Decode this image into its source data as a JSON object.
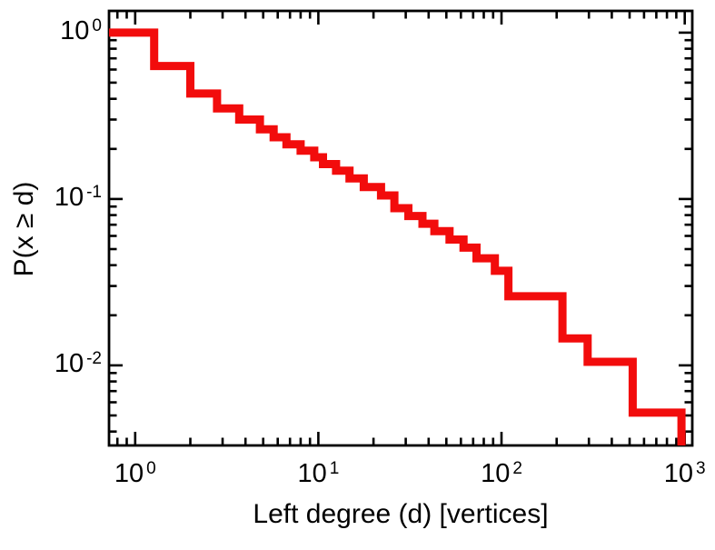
{
  "chart_data": {
    "type": "line",
    "subtype": "ccdf-log-log-step",
    "title": "",
    "xlabel": "Left degree (d) [vertices]",
    "ylabel": "P(x ≥ d)",
    "xscale": "log",
    "yscale": "log",
    "xlim": [
      0.72,
      1100
    ],
    "ylim": [
      0.0033,
      1.35
    ],
    "grid": false,
    "legend": "none",
    "axis_color": "#000000",
    "line_color": "#f20c0c",
    "background": "#ffffff",
    "xticks": [
      {
        "value": 1,
        "base": "10",
        "exp": "0"
      },
      {
        "value": 10,
        "base": "10",
        "exp": "1"
      },
      {
        "value": 100,
        "base": "10",
        "exp": "2"
      },
      {
        "value": 1000,
        "base": "10",
        "exp": "3"
      }
    ],
    "yticks": [
      {
        "value": 1,
        "base": "10",
        "exp": "0"
      },
      {
        "value": 0.1,
        "base": "10",
        "exp": "-1"
      },
      {
        "value": 0.01,
        "base": "10",
        "exp": "-2"
      }
    ],
    "steps": [
      [
        0.72,
        1.0
      ],
      [
        1.27,
        0.63
      ],
      [
        2.0,
        0.43
      ],
      [
        2.8,
        0.35
      ],
      [
        3.7,
        0.3
      ],
      [
        4.8,
        0.262
      ],
      [
        5.7,
        0.235
      ],
      [
        6.7,
        0.213
      ],
      [
        8.0,
        0.195
      ],
      [
        9.5,
        0.178
      ],
      [
        10.6,
        0.162
      ],
      [
        12.5,
        0.148
      ],
      [
        14.8,
        0.133
      ],
      [
        17.7,
        0.118
      ],
      [
        22,
        0.105
      ],
      [
        26,
        0.088
      ],
      [
        31,
        0.079
      ],
      [
        37,
        0.071
      ],
      [
        43,
        0.064
      ],
      [
        52,
        0.057
      ],
      [
        62,
        0.051
      ],
      [
        73,
        0.044
      ],
      [
        92,
        0.037
      ],
      [
        109,
        0.026
      ],
      [
        215,
        0.0145
      ],
      [
        295,
        0.0105
      ],
      [
        520,
        0.0052
      ],
      [
        960,
        0.0033
      ]
    ]
  }
}
